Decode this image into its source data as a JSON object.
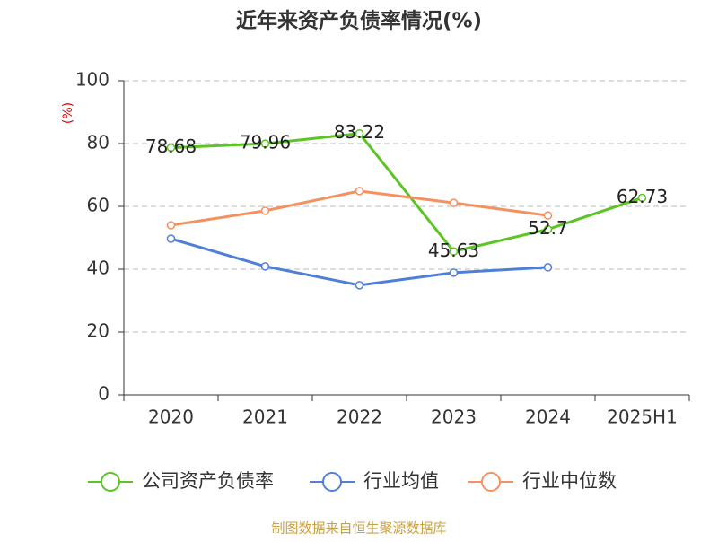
{
  "chart_data": {
    "type": "line",
    "title": "近年来资产负债率情况(%)",
    "y_label": "(%)",
    "categories": [
      "2020",
      "2021",
      "2022",
      "2023",
      "2024",
      "2025H1"
    ],
    "series": [
      {
        "name": "公司资产负债率",
        "color": "#5cc424",
        "values": [
          78.68,
          79.96,
          83.22,
          45.63,
          52.7,
          62.73
        ],
        "value_labels": [
          "78.68",
          "79.96",
          "83.22",
          "45.63",
          "52.7",
          "62.73"
        ]
      },
      {
        "name": "行业均值",
        "color": "#4f7fd8",
        "values": [
          49.7,
          40.9,
          34.9,
          38.9,
          40.6,
          null
        ]
      },
      {
        "name": "行业中位数",
        "color": "#f59160",
        "values": [
          54.0,
          58.6,
          64.9,
          61.1,
          57.1,
          null
        ]
      }
    ],
    "ylim": [
      0,
      100
    ],
    "yticks": [
      0,
      20,
      40,
      60,
      80,
      100
    ],
    "grid": true,
    "legend": "bottom",
    "source": "制图数据来自恒生聚源数据库"
  }
}
